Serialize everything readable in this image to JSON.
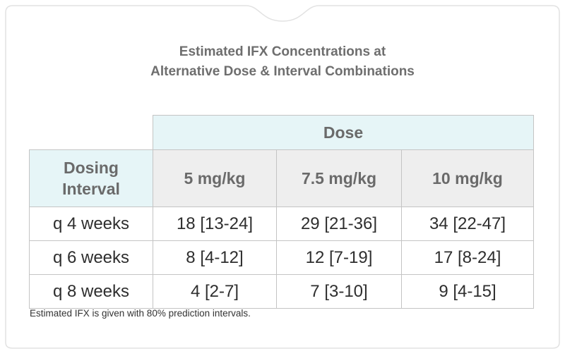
{
  "title": {
    "line1": "Estimated IFX Concentrations at",
    "line2": "Alternative Dose & Interval Combinations"
  },
  "table": {
    "dose_header": "Dose",
    "interval_header": [
      "Dosing",
      "Interval"
    ],
    "columns": [
      "5 mg/kg",
      "7.5 mg/kg",
      "10 mg/kg"
    ],
    "rows": [
      {
        "label": "q 4 weeks",
        "values": [
          "18 [13-24]",
          "29 [21-36]",
          "34 [22-47]"
        ]
      },
      {
        "label": "q 6 weeks",
        "values": [
          "8 [4-12]",
          "12 [7-19]",
          "17 [8-24]"
        ]
      },
      {
        "label": "q 8 weeks",
        "values": [
          "4 [2-7]",
          "7 [3-10]",
          "9 [4-15]"
        ]
      }
    ]
  },
  "footnote": "Estimated IFX is given with 80% prediction intervals.",
  "colors": {
    "header_bg": "#e6f5f7",
    "column_header_bg": "#eeeeee",
    "title_text": "#6e6e6e",
    "border": "#c4c4c4"
  }
}
